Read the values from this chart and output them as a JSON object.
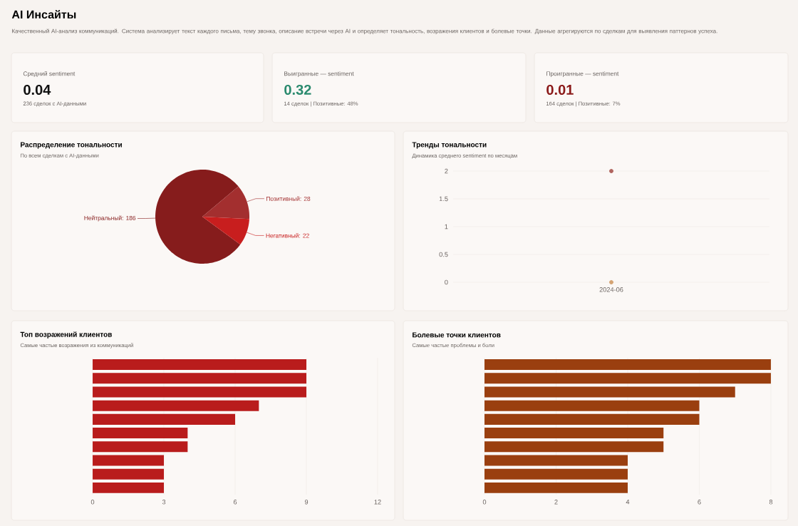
{
  "chart_data": [
    {
      "type": "other",
      "title": "AI Инсайты",
      "subtitle": "Качественный AI-анализ коммуникаций. Система анализирует текст каждого письма, тему звонка, описание встречи через AI и определяет тональность, возражения клиентов и болевые точки. Данные агрегируются по сделкам для выявления паттернов успеха."
    },
    {
      "type": "other",
      "title": "Средний sentiment",
      "annotations": [
        "0.04",
        "236 сделок с AI-данными"
      ],
      "color": "#111111"
    },
    {
      "type": "other",
      "title": "Выигранные — sentiment",
      "annotations": [
        "0.32",
        "14 сделок | Позитивные: 48%"
      ],
      "color": "#2a8a6e"
    },
    {
      "type": "other",
      "title": "Проигранные — sentiment",
      "annotations": [
        "0.01",
        "164 сделок | Позитивные: 7%"
      ],
      "color": "#8b1a1a"
    },
    {
      "type": "pie",
      "title": "Распределение тональности",
      "subtitle": "По всем сделкам с AI-данными",
      "categories": [
        "Нейтральный",
        "Позитивный",
        "Негативный"
      ],
      "values": [
        186,
        28,
        22
      ],
      "colors": [
        "#861c1c",
        "#a32f2f",
        "#c81e1e"
      ],
      "value_labels": [
        ": 186",
        ": 28",
        ": 22"
      ]
    },
    {
      "type": "scatter",
      "title": "Тренды тональности",
      "subtitle": "Динамика среднего sentiment по месяцам",
      "categories": [
        "2024-06"
      ],
      "series": [
        {
          "color": "#b0645e",
          "values": [
            2
          ]
        },
        {
          "color": "#d4a373",
          "values": [
            0
          ]
        }
      ],
      "ylim": [
        0,
        2
      ],
      "yticks": [
        0,
        0.5,
        1,
        1.5,
        2
      ],
      "grid": "y",
      "marker": "circle"
    },
    {
      "type": "bar",
      "orientation": "horizontal",
      "title": "Топ возражений клиентов",
      "subtitle": "Самые частые возражения из коммуникаций",
      "categories": [
        null,
        null,
        null,
        null,
        null,
        null,
        null,
        null,
        null,
        null
      ],
      "values": [
        9,
        9,
        9,
        7,
        6,
        4,
        4,
        3,
        3,
        3
      ],
      "color": "#b91c1c",
      "xlim": [
        0,
        12
      ],
      "xticks": [
        0,
        3,
        6,
        9,
        12
      ],
      "grid": "x"
    },
    {
      "type": "bar",
      "orientation": "horizontal",
      "title": "Болевые точки клиентов",
      "subtitle": "Самые частые проблемы и боли",
      "categories": [
        null,
        null,
        null,
        null,
        null,
        null,
        null,
        null,
        null,
        null
      ],
      "values": [
        8,
        8,
        7,
        6,
        6,
        5,
        5,
        4,
        4,
        4
      ],
      "color": "#9a3f0f",
      "xlim": [
        0,
        8
      ],
      "xticks": [
        0,
        2,
        4,
        6,
        8
      ],
      "grid": "x"
    }
  ]
}
